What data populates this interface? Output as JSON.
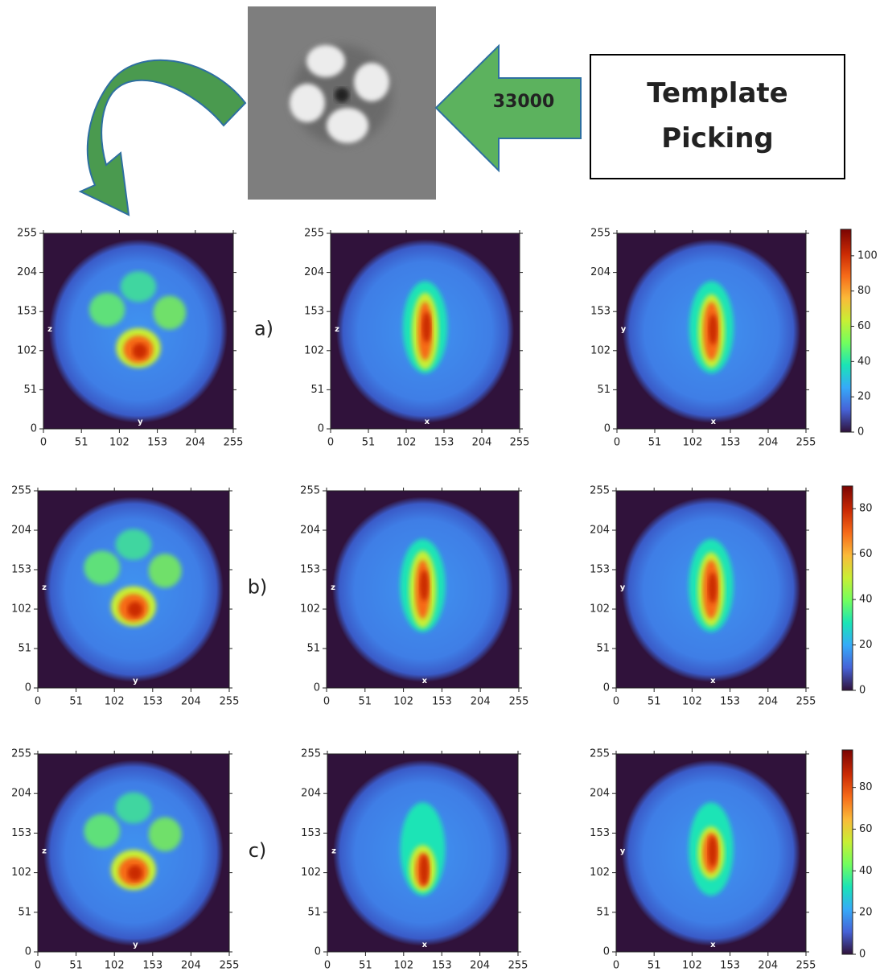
{
  "header": {
    "arrow_label": "33000",
    "box_label": "Template Picking"
  },
  "chart_data": [
    {
      "type": "heatmap",
      "annotation": "a)",
      "xlabel": "y",
      "ylabel": "z",
      "xlim": [
        0,
        255
      ],
      "ylim": [
        0,
        255
      ],
      "xticks": [
        0,
        51,
        102,
        153,
        204,
        255
      ],
      "yticks": [
        0,
        51,
        102,
        153,
        204,
        255
      ]
    },
    {
      "type": "heatmap",
      "xlabel": "x",
      "ylabel": "z",
      "xlim": [
        0,
        255
      ],
      "ylim": [
        0,
        255
      ],
      "xticks": [
        0,
        51,
        102,
        153,
        204,
        255
      ],
      "yticks": [
        0,
        51,
        102,
        153,
        204,
        255
      ]
    },
    {
      "type": "heatmap",
      "xlabel": "x",
      "ylabel": "y",
      "xlim": [
        0,
        255
      ],
      "ylim": [
        0,
        255
      ],
      "xticks": [
        0,
        51,
        102,
        153,
        204,
        255
      ],
      "yticks": [
        0,
        51,
        102,
        153,
        204,
        255
      ],
      "colorbar": {
        "lim": [
          0,
          115
        ],
        "ticks": [
          0,
          20,
          40,
          60,
          80,
          100
        ]
      }
    },
    {
      "type": "heatmap",
      "annotation": "b)",
      "xlabel": "y",
      "ylabel": "z",
      "xlim": [
        0,
        255
      ],
      "ylim": [
        0,
        255
      ],
      "xticks": [
        0,
        51,
        102,
        153,
        204,
        255
      ],
      "yticks": [
        0,
        51,
        102,
        153,
        204,
        255
      ]
    },
    {
      "type": "heatmap",
      "xlabel": "x",
      "ylabel": "z",
      "xlim": [
        0,
        255
      ],
      "ylim": [
        0,
        255
      ],
      "xticks": [
        0,
        51,
        102,
        153,
        204,
        255
      ],
      "yticks": [
        0,
        51,
        102,
        153,
        204,
        255
      ]
    },
    {
      "type": "heatmap",
      "xlabel": "x",
      "ylabel": "y",
      "xlim": [
        0,
        255
      ],
      "ylim": [
        0,
        255
      ],
      "xticks": [
        0,
        51,
        102,
        153,
        204,
        255
      ],
      "yticks": [
        0,
        51,
        102,
        153,
        204,
        255
      ],
      "colorbar": {
        "lim": [
          0,
          90
        ],
        "ticks": [
          0,
          20,
          40,
          60,
          80
        ]
      }
    },
    {
      "type": "heatmap",
      "annotation": "c)",
      "xlabel": "y",
      "ylabel": "z",
      "xlim": [
        0,
        255
      ],
      "ylim": [
        0,
        255
      ],
      "xticks": [
        0,
        51,
        102,
        153,
        204,
        255
      ],
      "yticks": [
        0,
        51,
        102,
        153,
        204,
        255
      ]
    },
    {
      "type": "heatmap",
      "xlabel": "x",
      "ylabel": "z",
      "xlim": [
        0,
        255
      ],
      "ylim": [
        0,
        255
      ],
      "xticks": [
        0,
        51,
        102,
        153,
        204,
        255
      ],
      "yticks": [
        0,
        51,
        102,
        153,
        204,
        255
      ]
    },
    {
      "type": "heatmap",
      "xlabel": "x",
      "ylabel": "y",
      "xlim": [
        0,
        255
      ],
      "ylim": [
        0,
        255
      ],
      "xticks": [
        0,
        51,
        102,
        153,
        204,
        255
      ],
      "yticks": [
        0,
        51,
        102,
        153,
        204,
        255
      ],
      "colorbar": {
        "lim": [
          0,
          98
        ],
        "ticks": [
          0,
          20,
          40,
          60,
          80
        ]
      }
    }
  ]
}
